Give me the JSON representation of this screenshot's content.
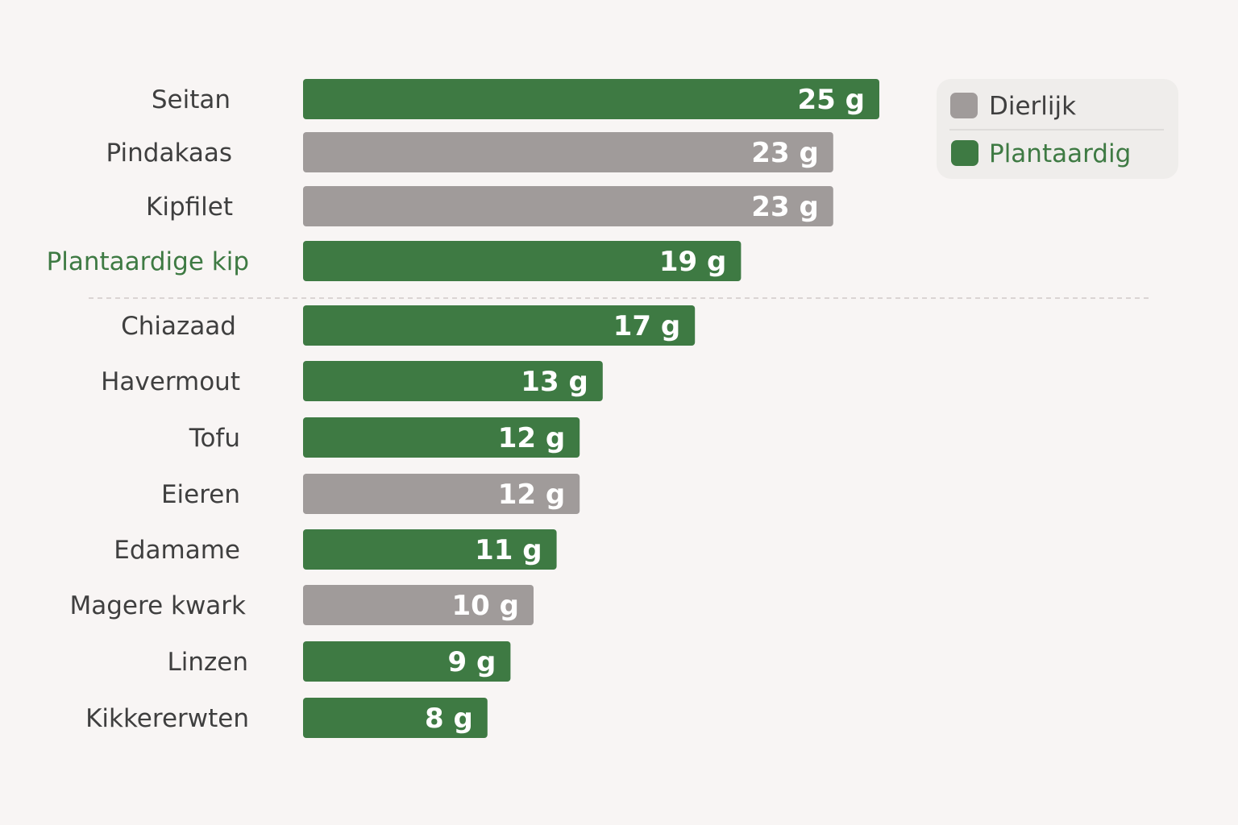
{
  "chart_data": {
    "type": "bar",
    "orientation": "horizontal",
    "categories": [
      "Seitan",
      "Pindakaas",
      "Kipfilet",
      "Plantaardige kip",
      "Chiazaad",
      "Havermout",
      "Tofu",
      "Eieren",
      "Edamame",
      "Magere kwark",
      "Linzen",
      "Kikkererwten"
    ],
    "values": [
      25,
      23,
      23,
      19,
      17,
      13,
      12,
      12,
      11,
      10,
      9,
      8
    ],
    "value_labels": [
      "25 g",
      "23 g",
      "23 g",
      "19 g",
      "17 g",
      "13 g",
      "12 g",
      "12 g",
      "11 g",
      "10 g",
      "9 g",
      "8 g"
    ],
    "groups": [
      "Plantaardig",
      "Dierlijk",
      "Dierlijk",
      "Plantaardig",
      "Plantaardig",
      "Plantaardig",
      "Plantaardig",
      "Dierlijk",
      "Plantaardig",
      "Dierlijk",
      "Plantaardig",
      "Plantaardig"
    ],
    "highlighted_category": "Plantaardige kip",
    "separator_after": "Plantaardige kip",
    "legend": {
      "placement": "top-right",
      "items": [
        {
          "label": "Dierlijk",
          "color": "#a09b9a"
        },
        {
          "label": "Plantaardig",
          "color": "#3e7a43"
        }
      ]
    },
    "colors": {
      "Plantaardig": "#3e7a43",
      "Dierlijk": "#a09b9a",
      "highlight_label": "#3e7a43",
      "label": "#3f3f3f",
      "background": "#f8f5f4"
    },
    "title": "",
    "xlabel": "",
    "ylabel": "",
    "grid": false
  }
}
